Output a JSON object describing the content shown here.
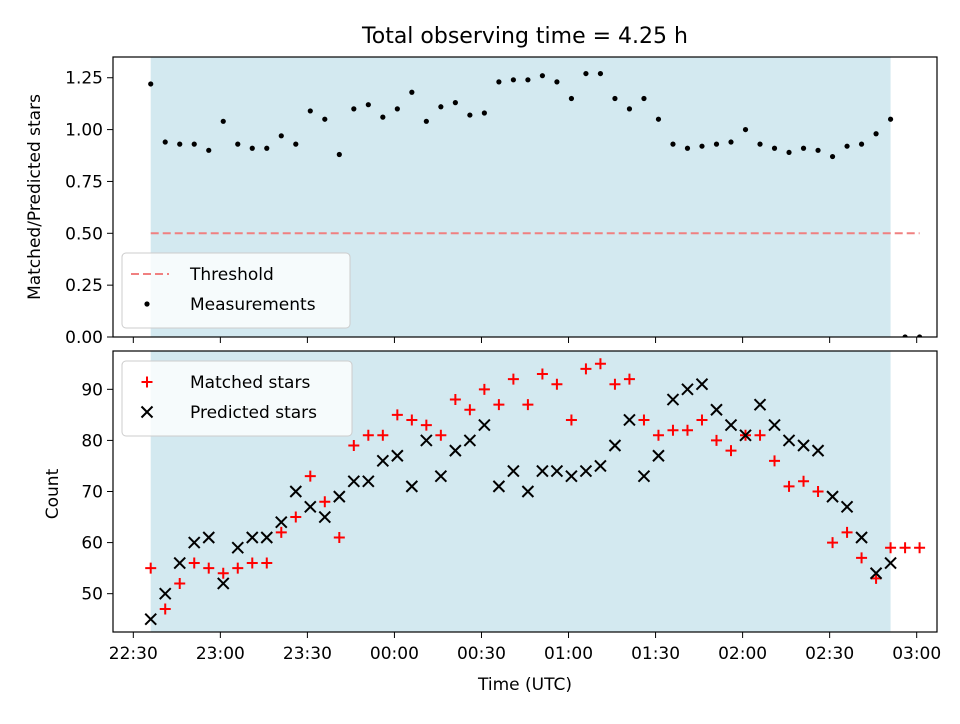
{
  "chart_data": [
    {
      "type": "scatter",
      "title": "Total observing time = 4.25 h",
      "xlabel": "",
      "ylabel": "Matched/Predicted stars",
      "x_axis": "time (UTC)",
      "xlim": [
        "22:23",
        "03:07"
      ],
      "ylim": [
        0,
        1.35
      ],
      "yticks": [
        "0.00",
        "0.25",
        "0.50",
        "0.75",
        "1.00",
        "1.25"
      ],
      "shaded_span": [
        "22:36",
        "02:51"
      ],
      "shade_color": "#d3e9f0",
      "legend_position": "lower-left",
      "threshold": {
        "name": "Threshold",
        "value": 0.5,
        "x_range": [
          "22:36",
          "03:01"
        ],
        "color": "#f08080",
        "style": "dashed"
      },
      "series": [
        {
          "name": "Measurements",
          "color": "#000000",
          "marker": "dot",
          "x": [
            "22:36",
            "22:41",
            "22:46",
            "22:51",
            "22:56",
            "23:01",
            "23:06",
            "23:11",
            "23:16",
            "23:21",
            "23:26",
            "23:31",
            "23:36",
            "23:41",
            "23:46",
            "23:51",
            "23:56",
            "00:01",
            "00:06",
            "00:11",
            "00:16",
            "00:21",
            "00:26",
            "00:31",
            "00:36",
            "00:41",
            "00:46",
            "00:51",
            "00:56",
            "01:01",
            "01:06",
            "01:11",
            "01:16",
            "01:21",
            "01:26",
            "01:31",
            "01:36",
            "01:41",
            "01:46",
            "01:51",
            "01:56",
            "02:01",
            "02:06",
            "02:11",
            "02:16",
            "02:21",
            "02:26",
            "02:31",
            "02:36",
            "02:41",
            "02:46",
            "02:51",
            "02:56",
            "03:01"
          ],
          "y": [
            1.22,
            0.94,
            0.93,
            0.93,
            0.9,
            1.04,
            0.93,
            0.91,
            0.91,
            0.97,
            0.93,
            1.09,
            1.05,
            0.88,
            1.1,
            1.12,
            1.06,
            1.1,
            1.18,
            1.04,
            1.11,
            1.13,
            1.07,
            1.08,
            1.23,
            1.24,
            1.24,
            1.26,
            1.23,
            1.15,
            1.27,
            1.27,
            1.15,
            1.1,
            1.15,
            1.05,
            0.93,
            0.91,
            0.92,
            0.93,
            0.94,
            1.0,
            0.93,
            0.91,
            0.89,
            0.91,
            0.9,
            0.87,
            0.92,
            0.93,
            0.98,
            1.05,
            0.0,
            0.0
          ]
        }
      ]
    },
    {
      "type": "scatter",
      "title": "",
      "xlabel": "Time (UTC)",
      "ylabel": "Count",
      "xlim": [
        "22:23",
        "03:07"
      ],
      "ylim": [
        42.5,
        97.5
      ],
      "yticks": [
        "50",
        "60",
        "70",
        "80",
        "90"
      ],
      "xticks": [
        "22:30",
        "23:00",
        "23:30",
        "00:00",
        "00:30",
        "01:00",
        "01:30",
        "02:00",
        "02:30",
        "03:00"
      ],
      "shaded_span": [
        "22:36",
        "02:51"
      ],
      "shade_color": "#d3e9f0",
      "legend_position": "upper-left",
      "series": [
        {
          "name": "Matched stars",
          "color": "#ff0000",
          "marker": "plus",
          "x": [
            "22:36",
            "22:41",
            "22:46",
            "22:51",
            "22:56",
            "23:01",
            "23:06",
            "23:11",
            "23:16",
            "23:21",
            "23:26",
            "23:31",
            "23:36",
            "23:41",
            "23:46",
            "23:51",
            "23:56",
            "00:01",
            "00:06",
            "00:11",
            "00:16",
            "00:21",
            "00:26",
            "00:31",
            "00:36",
            "00:41",
            "00:46",
            "00:51",
            "00:56",
            "01:01",
            "01:06",
            "01:11",
            "01:16",
            "01:21",
            "01:26",
            "01:31",
            "01:36",
            "01:41",
            "01:46",
            "01:51",
            "01:56",
            "02:01",
            "02:06",
            "02:11",
            "02:16",
            "02:21",
            "02:26",
            "02:31",
            "02:36",
            "02:41",
            "02:46",
            "02:51",
            "02:56",
            "03:01"
          ],
          "y": [
            55,
            47,
            52,
            56,
            55,
            54,
            55,
            56,
            56,
            62,
            65,
            73,
            68,
            61,
            79,
            81,
            81,
            85,
            84,
            83,
            81,
            88,
            86,
            90,
            87,
            92,
            87,
            93,
            91,
            84,
            94,
            95,
            91,
            92,
            84,
            81,
            82,
            82,
            84,
            80,
            78,
            81,
            81,
            76,
            71,
            72,
            70,
            60,
            62,
            57,
            53,
            59,
            59,
            59
          ]
        },
        {
          "name": "Predicted stars",
          "color": "#000000",
          "marker": "x",
          "x": [
            "22:36",
            "22:41",
            "22:46",
            "22:51",
            "22:56",
            "23:01",
            "23:06",
            "23:11",
            "23:16",
            "23:21",
            "23:26",
            "23:31",
            "23:36",
            "23:41",
            "23:46",
            "23:51",
            "23:56",
            "00:01",
            "00:06",
            "00:11",
            "00:16",
            "00:21",
            "00:26",
            "00:31",
            "00:36",
            "00:41",
            "00:46",
            "00:51",
            "00:56",
            "01:01",
            "01:06",
            "01:11",
            "01:16",
            "01:21",
            "01:26",
            "01:31",
            "01:36",
            "01:41",
            "01:46",
            "01:51",
            "01:56",
            "02:01",
            "02:06",
            "02:11",
            "02:16",
            "02:21",
            "02:26",
            "02:31",
            "02:36",
            "02:41",
            "02:46",
            "02:51"
          ],
          "y": [
            45,
            50,
            56,
            60,
            61,
            52,
            59,
            61,
            61,
            64,
            70,
            67,
            65,
            69,
            72,
            72,
            76,
            77,
            71,
            80,
            73,
            78,
            80,
            83,
            71,
            74,
            70,
            74,
            74,
            73,
            74,
            75,
            79,
            84,
            73,
            77,
            88,
            90,
            91,
            86,
            83,
            81,
            87,
            83,
            80,
            79,
            78,
            69,
            67,
            61,
            54,
            56
          ]
        }
      ]
    }
  ]
}
